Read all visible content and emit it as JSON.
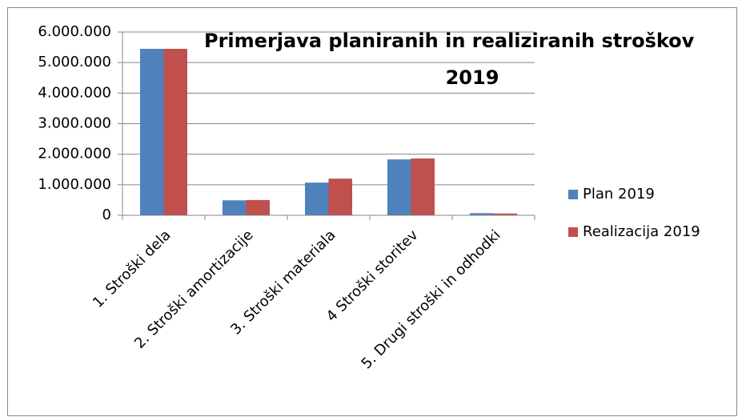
{
  "chart_data": {
    "type": "bar",
    "title": [
      "Primerjava planiranih in realiziranih stroškov",
      "2019"
    ],
    "categories": [
      "1. Stroški dela",
      "2. Stroški amortizacije",
      "3. Stroški materiala",
      "4 Stroški storitev",
      "5. Drugi stroški in odhodki"
    ],
    "series": [
      {
        "name": "Plan 2019",
        "color": "#4f81bd",
        "values": [
          5450000,
          490000,
          1070000,
          1830000,
          70000
        ]
      },
      {
        "name": "Realizacija 2019",
        "color": "#c0504d",
        "values": [
          5450000,
          500000,
          1200000,
          1860000,
          60000
        ]
      }
    ],
    "ylim": [
      0,
      6000000
    ],
    "yticks": [
      0,
      {
        "value": 1000000,
        "label": "1.000.000"
      },
      {
        "value": 2000000,
        "label": "2.000.000"
      },
      {
        "value": 3000000,
        "label": "3.000.000"
      },
      {
        "value": 4000000,
        "label": "4.000.000"
      },
      {
        "value": 5000000,
        "label": "5.000.000"
      },
      {
        "value": 6000000,
        "label": "6.000.000"
      }
    ],
    "grid": true,
    "legend": "right"
  }
}
